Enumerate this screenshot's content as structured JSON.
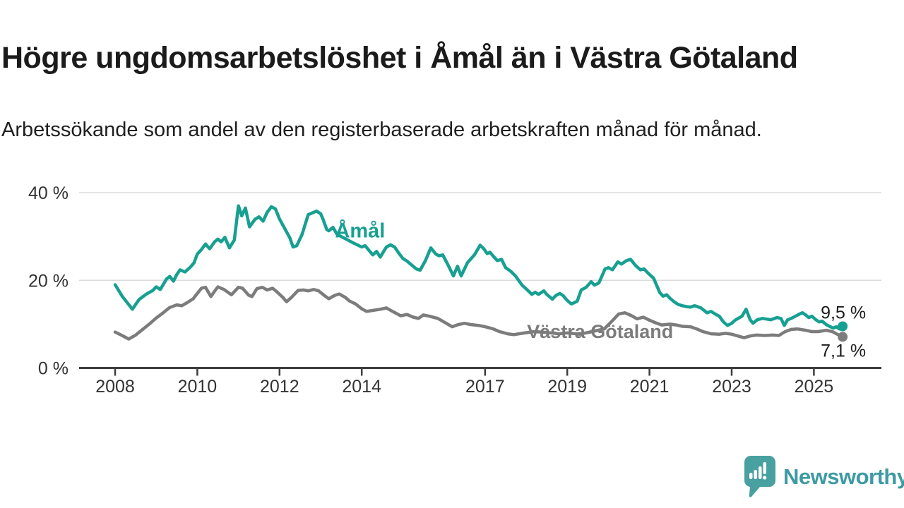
{
  "header": {
    "title": "Högre ungdomsarbetslöshet i Åmål än i Västra Götaland",
    "subtitle": "Arbetssökande som andel av den registerbaserade arbetskraften månad för månad."
  },
  "footer": {
    "brand": "Newsworthy",
    "logo_icon": "speech-bubble-bar-chart-icon"
  },
  "colors": {
    "accent_teal": "#17a092",
    "line_gray": "#7c7c7c",
    "axis": "#3d3d3d",
    "gridline": "#dadada",
    "text_dark": "#1c1c1c",
    "tick_text": "#333333",
    "logo_teal": "#48a0a0",
    "logo_wordmark": "#3d9aa3"
  },
  "chart_data": {
    "type": "line",
    "unit": "%",
    "title": "Högre ungdomsarbetslöshet i Åmål än i Västra Götaland",
    "xlabel": "",
    "ylabel": "",
    "grid": "horizontal-only",
    "legend_position": "inline-labels",
    "x_axis": {
      "ticks": [
        2008,
        2010,
        2012,
        2014,
        2017,
        2019,
        2021,
        2023,
        2025
      ]
    },
    "y_axis": {
      "ticks": [
        {
          "value": 0,
          "label": "0 %"
        },
        {
          "value": 20,
          "label": "20 %"
        },
        {
          "value": 40,
          "label": "40 %"
        }
      ],
      "range": [
        0,
        42
      ]
    },
    "series": [
      {
        "name": "Västra Götaland",
        "color": "#7c7c7c",
        "end_value": 7.1,
        "end_label": "7,1 %",
        "label_at": [
          2019.8,
          8.3
        ],
        "points": [
          [
            2008.0,
            8.2
          ],
          [
            2008.17,
            7.4
          ],
          [
            2008.33,
            6.6
          ],
          [
            2008.5,
            7.5
          ],
          [
            2008.67,
            8.8
          ],
          [
            2008.83,
            10.0
          ],
          [
            2009.0,
            11.4
          ],
          [
            2009.17,
            12.6
          ],
          [
            2009.33,
            13.8
          ],
          [
            2009.5,
            14.4
          ],
          [
            2009.62,
            14.2
          ],
          [
            2009.75,
            14.9
          ],
          [
            2009.9,
            15.8
          ],
          [
            2010.0,
            17.0
          ],
          [
            2010.1,
            18.2
          ],
          [
            2010.2,
            18.4
          ],
          [
            2010.33,
            16.3
          ],
          [
            2010.42,
            17.5
          ],
          [
            2010.5,
            18.5
          ],
          [
            2010.65,
            17.9
          ],
          [
            2010.83,
            16.7
          ],
          [
            2011.0,
            18.4
          ],
          [
            2011.1,
            18.2
          ],
          [
            2011.25,
            16.6
          ],
          [
            2011.33,
            16.3
          ],
          [
            2011.45,
            18.1
          ],
          [
            2011.58,
            18.4
          ],
          [
            2011.7,
            17.8
          ],
          [
            2011.83,
            18.2
          ],
          [
            2011.92,
            17.5
          ],
          [
            2012.08,
            16.1
          ],
          [
            2012.17,
            15.1
          ],
          [
            2012.3,
            16.2
          ],
          [
            2012.45,
            17.7
          ],
          [
            2012.58,
            17.8
          ],
          [
            2012.7,
            17.6
          ],
          [
            2012.83,
            17.9
          ],
          [
            2012.95,
            17.6
          ],
          [
            2013.08,
            16.6
          ],
          [
            2013.2,
            15.8
          ],
          [
            2013.33,
            16.5
          ],
          [
            2013.45,
            16.9
          ],
          [
            2013.6,
            16.1
          ],
          [
            2013.7,
            15.3
          ],
          [
            2013.85,
            14.6
          ],
          [
            2014.0,
            13.5
          ],
          [
            2014.12,
            12.9
          ],
          [
            2014.25,
            13.1
          ],
          [
            2014.45,
            13.4
          ],
          [
            2014.6,
            13.7
          ],
          [
            2014.75,
            12.9
          ],
          [
            2014.95,
            11.9
          ],
          [
            2015.1,
            12.2
          ],
          [
            2015.25,
            11.6
          ],
          [
            2015.38,
            11.3
          ],
          [
            2015.5,
            12.1
          ],
          [
            2015.65,
            11.8
          ],
          [
            2015.85,
            11.3
          ],
          [
            2016.0,
            10.5
          ],
          [
            2016.2,
            9.4
          ],
          [
            2016.35,
            9.9
          ],
          [
            2016.5,
            10.2
          ],
          [
            2016.65,
            9.9
          ],
          [
            2016.85,
            9.7
          ],
          [
            2017.0,
            9.4
          ],
          [
            2017.2,
            8.9
          ],
          [
            2017.35,
            8.3
          ],
          [
            2017.55,
            7.8
          ],
          [
            2017.7,
            7.6
          ],
          [
            2017.9,
            7.9
          ],
          [
            2018.2,
            8.3
          ],
          [
            2018.5,
            8.1
          ],
          [
            2018.8,
            7.8
          ],
          [
            2019.0,
            8.0
          ],
          [
            2019.3,
            7.7
          ],
          [
            2019.6,
            8.3
          ],
          [
            2019.9,
            8.9
          ],
          [
            2020.1,
            10.8
          ],
          [
            2020.25,
            12.3
          ],
          [
            2020.4,
            12.6
          ],
          [
            2020.55,
            12.0
          ],
          [
            2020.7,
            11.2
          ],
          [
            2020.85,
            11.6
          ],
          [
            2021.0,
            10.9
          ],
          [
            2021.15,
            10.3
          ],
          [
            2021.3,
            9.8
          ],
          [
            2021.5,
            10.0
          ],
          [
            2021.65,
            9.8
          ],
          [
            2021.8,
            9.5
          ],
          [
            2022.0,
            9.4
          ],
          [
            2022.15,
            8.9
          ],
          [
            2022.3,
            8.3
          ],
          [
            2022.5,
            7.8
          ],
          [
            2022.7,
            7.7
          ],
          [
            2022.85,
            7.9
          ],
          [
            2023.0,
            7.7
          ],
          [
            2023.15,
            7.3
          ],
          [
            2023.3,
            6.9
          ],
          [
            2023.45,
            7.3
          ],
          [
            2023.6,
            7.5
          ],
          [
            2023.8,
            7.4
          ],
          [
            2024.0,
            7.5
          ],
          [
            2024.15,
            7.4
          ],
          [
            2024.3,
            8.3
          ],
          [
            2024.45,
            8.8
          ],
          [
            2024.6,
            8.9
          ],
          [
            2024.8,
            8.6
          ],
          [
            2024.95,
            8.3
          ],
          [
            2025.1,
            8.3
          ],
          [
            2025.3,
            8.6
          ],
          [
            2025.45,
            8.3
          ],
          [
            2025.55,
            7.8
          ],
          [
            2025.7,
            7.1
          ]
        ]
      },
      {
        "name": "Åmål",
        "color": "#17a092",
        "end_value": 9.5,
        "end_label": "9,5 %",
        "label_at": [
          2013.96,
          31.2
        ],
        "points": [
          [
            2008.0,
            19.0
          ],
          [
            2008.17,
            16.4
          ],
          [
            2008.42,
            13.4
          ],
          [
            2008.58,
            15.6
          ],
          [
            2008.75,
            16.8
          ],
          [
            2008.92,
            17.7
          ],
          [
            2009.0,
            18.5
          ],
          [
            2009.1,
            17.9
          ],
          [
            2009.25,
            20.3
          ],
          [
            2009.33,
            20.9
          ],
          [
            2009.42,
            19.8
          ],
          [
            2009.5,
            21.3
          ],
          [
            2009.58,
            22.4
          ],
          [
            2009.7,
            21.9
          ],
          [
            2009.83,
            23.0
          ],
          [
            2009.92,
            24.0
          ],
          [
            2010.0,
            26.0
          ],
          [
            2010.1,
            27.0
          ],
          [
            2010.2,
            28.3
          ],
          [
            2010.3,
            27.2
          ],
          [
            2010.42,
            28.8
          ],
          [
            2010.5,
            29.4
          ],
          [
            2010.58,
            28.8
          ],
          [
            2010.67,
            29.8
          ],
          [
            2010.78,
            27.4
          ],
          [
            2010.9,
            29.2
          ],
          [
            2011.0,
            37.0
          ],
          [
            2011.08,
            34.7
          ],
          [
            2011.17,
            36.5
          ],
          [
            2011.27,
            32.2
          ],
          [
            2011.4,
            33.9
          ],
          [
            2011.5,
            34.5
          ],
          [
            2011.6,
            33.5
          ],
          [
            2011.7,
            35.5
          ],
          [
            2011.8,
            36.8
          ],
          [
            2011.9,
            36.3
          ],
          [
            2012.0,
            34.0
          ],
          [
            2012.08,
            32.6
          ],
          [
            2012.25,
            29.7
          ],
          [
            2012.33,
            27.6
          ],
          [
            2012.42,
            27.9
          ],
          [
            2012.55,
            30.5
          ],
          [
            2012.63,
            33.0
          ],
          [
            2012.7,
            35.0
          ],
          [
            2012.8,
            35.4
          ],
          [
            2012.9,
            35.8
          ],
          [
            2013.0,
            35.2
          ],
          [
            2013.06,
            33.9
          ],
          [
            2013.15,
            31.6
          ],
          [
            2013.2,
            31.3
          ],
          [
            2013.3,
            32.1
          ],
          [
            2013.4,
            30.5
          ],
          [
            2013.6,
            29.5
          ],
          [
            2013.8,
            28.5
          ],
          [
            2014.0,
            27.6
          ],
          [
            2014.08,
            27.9
          ],
          [
            2014.27,
            25.8
          ],
          [
            2014.36,
            26.6
          ],
          [
            2014.45,
            25.3
          ],
          [
            2014.6,
            27.6
          ],
          [
            2014.7,
            28.1
          ],
          [
            2014.8,
            27.6
          ],
          [
            2014.9,
            26.2
          ],
          [
            2015.0,
            25.0
          ],
          [
            2015.1,
            24.4
          ],
          [
            2015.2,
            23.6
          ],
          [
            2015.33,
            22.6
          ],
          [
            2015.42,
            22.3
          ],
          [
            2015.55,
            24.5
          ],
          [
            2015.68,
            27.4
          ],
          [
            2015.8,
            26.0
          ],
          [
            2015.88,
            25.6
          ],
          [
            2015.97,
            25.8
          ],
          [
            2016.1,
            23.5
          ],
          [
            2016.23,
            21.0
          ],
          [
            2016.33,
            23.2
          ],
          [
            2016.42,
            21.0
          ],
          [
            2016.57,
            24.0
          ],
          [
            2016.74,
            25.8
          ],
          [
            2016.88,
            28.0
          ],
          [
            2016.97,
            27.2
          ],
          [
            2017.05,
            26.1
          ],
          [
            2017.12,
            26.4
          ],
          [
            2017.22,
            25.3
          ],
          [
            2017.3,
            24.5
          ],
          [
            2017.4,
            24.8
          ],
          [
            2017.5,
            22.9
          ],
          [
            2017.62,
            22.1
          ],
          [
            2017.74,
            21.0
          ],
          [
            2017.8,
            20.2
          ],
          [
            2017.9,
            18.9
          ],
          [
            2018.03,
            17.8
          ],
          [
            2018.14,
            16.8
          ],
          [
            2018.22,
            17.3
          ],
          [
            2018.3,
            16.8
          ],
          [
            2018.43,
            17.6
          ],
          [
            2018.5,
            16.8
          ],
          [
            2018.64,
            15.7
          ],
          [
            2018.72,
            16.5
          ],
          [
            2018.82,
            17.0
          ],
          [
            2018.9,
            16.5
          ],
          [
            2019.0,
            15.4
          ],
          [
            2019.1,
            14.6
          ],
          [
            2019.24,
            15.2
          ],
          [
            2019.34,
            17.8
          ],
          [
            2019.46,
            18.4
          ],
          [
            2019.58,
            19.7
          ],
          [
            2019.66,
            18.9
          ],
          [
            2019.77,
            19.4
          ],
          [
            2019.92,
            22.6
          ],
          [
            2020.0,
            22.9
          ],
          [
            2020.1,
            22.4
          ],
          [
            2020.23,
            24.2
          ],
          [
            2020.32,
            23.7
          ],
          [
            2020.44,
            24.5
          ],
          [
            2020.54,
            24.8
          ],
          [
            2020.66,
            23.4
          ],
          [
            2020.78,
            22.4
          ],
          [
            2020.87,
            22.6
          ],
          [
            2020.97,
            21.6
          ],
          [
            2021.1,
            20.5
          ],
          [
            2021.25,
            17.2
          ],
          [
            2021.33,
            16.4
          ],
          [
            2021.42,
            16.7
          ],
          [
            2021.5,
            15.9
          ],
          [
            2021.6,
            15.1
          ],
          [
            2021.7,
            14.5
          ],
          [
            2021.8,
            14.2
          ],
          [
            2021.9,
            14.0
          ],
          [
            2022.0,
            13.9
          ],
          [
            2022.1,
            14.2
          ],
          [
            2022.25,
            13.7
          ],
          [
            2022.4,
            12.6
          ],
          [
            2022.5,
            12.9
          ],
          [
            2022.6,
            12.3
          ],
          [
            2022.7,
            11.8
          ],
          [
            2022.8,
            10.5
          ],
          [
            2022.9,
            9.7
          ],
          [
            2023.0,
            10.2
          ],
          [
            2023.1,
            11.0
          ],
          [
            2023.25,
            11.8
          ],
          [
            2023.35,
            13.4
          ],
          [
            2023.45,
            11.0
          ],
          [
            2023.52,
            10.2
          ],
          [
            2023.62,
            11.0
          ],
          [
            2023.75,
            11.3
          ],
          [
            2023.95,
            11.0
          ],
          [
            2024.1,
            11.5
          ],
          [
            2024.2,
            11.3
          ],
          [
            2024.28,
            9.7
          ],
          [
            2024.36,
            11.0
          ],
          [
            2024.45,
            11.3
          ],
          [
            2024.55,
            11.8
          ],
          [
            2024.65,
            12.3
          ],
          [
            2024.72,
            12.6
          ],
          [
            2024.8,
            12.1
          ],
          [
            2024.88,
            11.5
          ],
          [
            2024.95,
            11.8
          ],
          [
            2025.05,
            11.0
          ],
          [
            2025.13,
            10.5
          ],
          [
            2025.2,
            10.7
          ],
          [
            2025.3,
            9.9
          ],
          [
            2025.4,
            9.4
          ],
          [
            2025.47,
            9.1
          ],
          [
            2025.55,
            9.4
          ],
          [
            2025.62,
            8.9
          ],
          [
            2025.7,
            9.5
          ]
        ]
      }
    ]
  }
}
